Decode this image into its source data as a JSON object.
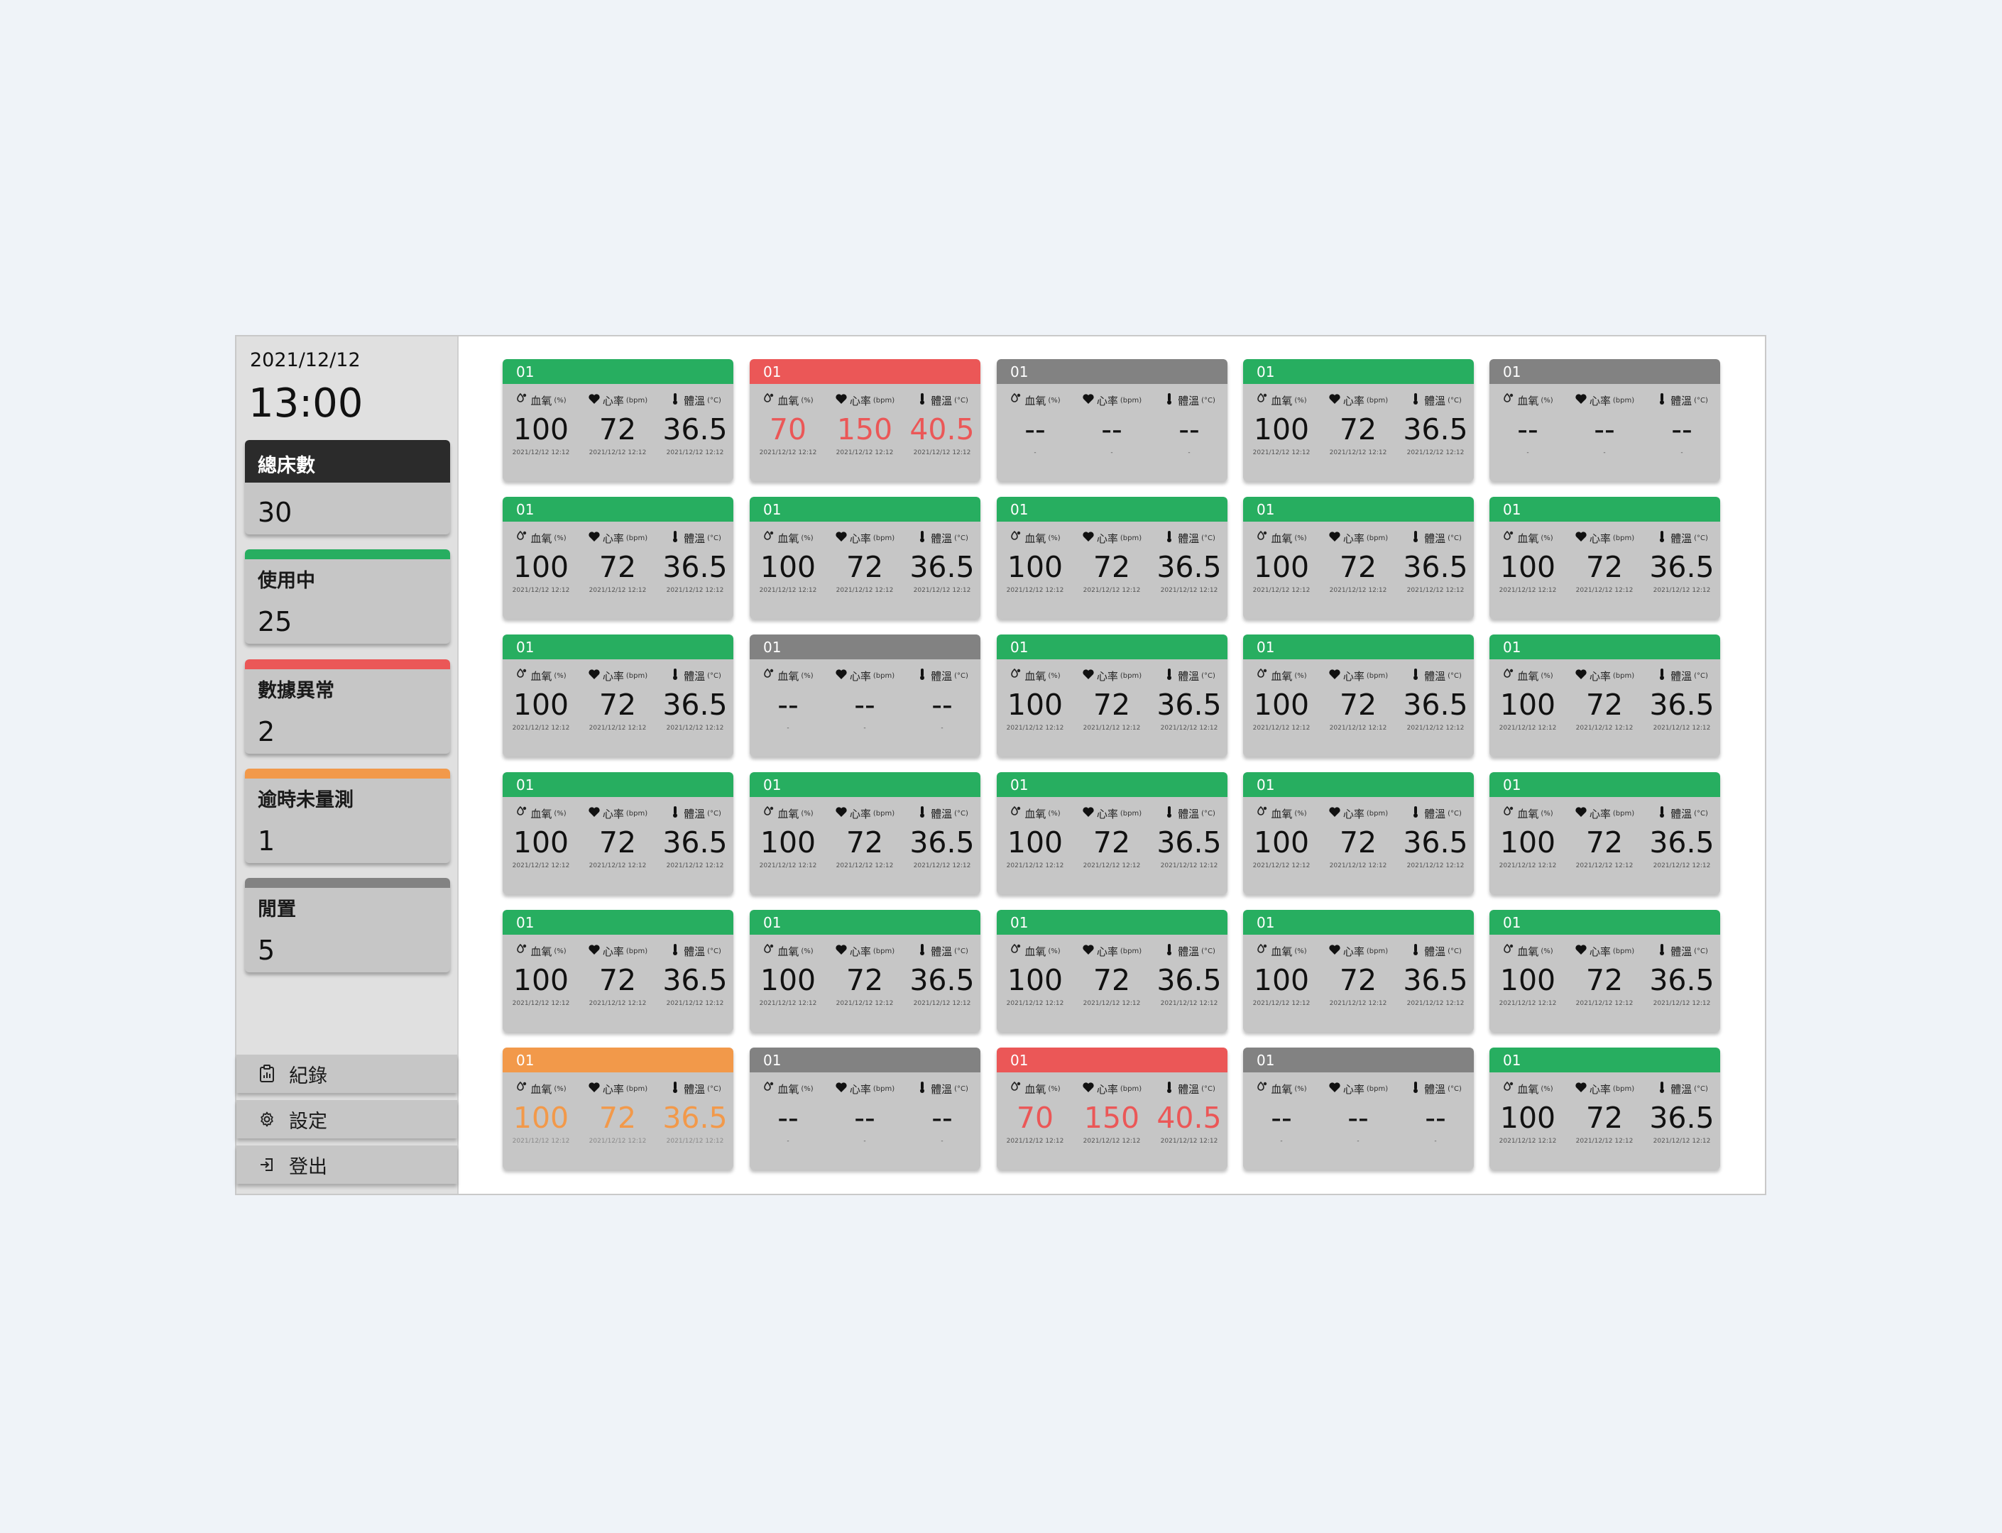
{
  "colors": {
    "normal": "#27ae60",
    "alert": "#eb5757",
    "overdue": "#f2994a",
    "idle": "#828282",
    "total": "#2b2b2b"
  },
  "sidebar": {
    "date": "2021/12/12",
    "time": "13:00",
    "stats": [
      {
        "label": "總床數",
        "value": "30",
        "kind": "total"
      },
      {
        "label": "使用中",
        "value": "25",
        "kind": "normal"
      },
      {
        "label": "數據異常",
        "value": "2",
        "kind": "alert"
      },
      {
        "label": "逾時未量測",
        "value": "1",
        "kind": "overdue"
      },
      {
        "label": "閒置",
        "value": "5",
        "kind": "idle"
      }
    ],
    "nav": [
      {
        "label": "紀錄",
        "icon": "report-icon"
      },
      {
        "label": "設定",
        "icon": "gear-icon"
      },
      {
        "label": "登出",
        "icon": "logout-icon"
      }
    ]
  },
  "metric_labels": {
    "spo2": "血氧",
    "spo2_unit": "(%)",
    "hr": "心率",
    "hr_unit": "(bpm)",
    "temp": "體溫",
    "temp_unit": "(°C)"
  },
  "beds": [
    {
      "id": "01",
      "status": "normal",
      "spo2": "100",
      "hr": "72",
      "temp": "36.5",
      "ts": "2021/12/12 12:12"
    },
    {
      "id": "01",
      "status": "alert",
      "spo2": "70",
      "hr": "150",
      "temp": "40.5",
      "ts": "2021/12/12 12:12"
    },
    {
      "id": "01",
      "status": "idle",
      "spo2": "--",
      "hr": "--",
      "temp": "--",
      "ts": "-"
    },
    {
      "id": "01",
      "status": "normal",
      "spo2": "100",
      "hr": "72",
      "temp": "36.5",
      "ts": "2021/12/12 12:12"
    },
    {
      "id": "01",
      "status": "idle",
      "spo2": "--",
      "hr": "--",
      "temp": "--",
      "ts": "-"
    },
    {
      "id": "01",
      "status": "normal",
      "spo2": "100",
      "hr": "72",
      "temp": "36.5",
      "ts": "2021/12/12 12:12"
    },
    {
      "id": "01",
      "status": "normal",
      "spo2": "100",
      "hr": "72",
      "temp": "36.5",
      "ts": "2021/12/12 12:12"
    },
    {
      "id": "01",
      "status": "normal",
      "spo2": "100",
      "hr": "72",
      "temp": "36.5",
      "ts": "2021/12/12 12:12"
    },
    {
      "id": "01",
      "status": "normal",
      "spo2": "100",
      "hr": "72",
      "temp": "36.5",
      "ts": "2021/12/12 12:12"
    },
    {
      "id": "01",
      "status": "normal",
      "spo2": "100",
      "hr": "72",
      "temp": "36.5",
      "ts": "2021/12/12 12:12"
    },
    {
      "id": "01",
      "status": "normal",
      "spo2": "100",
      "hr": "72",
      "temp": "36.5",
      "ts": "2021/12/12 12:12"
    },
    {
      "id": "01",
      "status": "idle",
      "spo2": "--",
      "hr": "--",
      "temp": "--",
      "ts": "-"
    },
    {
      "id": "01",
      "status": "normal",
      "spo2": "100",
      "hr": "72",
      "temp": "36.5",
      "ts": "2021/12/12 12:12"
    },
    {
      "id": "01",
      "status": "normal",
      "spo2": "100",
      "hr": "72",
      "temp": "36.5",
      "ts": "2021/12/12 12:12"
    },
    {
      "id": "01",
      "status": "normal",
      "spo2": "100",
      "hr": "72",
      "temp": "36.5",
      "ts": "2021/12/12 12:12"
    },
    {
      "id": "01",
      "status": "normal",
      "spo2": "100",
      "hr": "72",
      "temp": "36.5",
      "ts": "2021/12/12 12:12"
    },
    {
      "id": "01",
      "status": "normal",
      "spo2": "100",
      "hr": "72",
      "temp": "36.5",
      "ts": "2021/12/12 12:12"
    },
    {
      "id": "01",
      "status": "normal",
      "spo2": "100",
      "hr": "72",
      "temp": "36.5",
      "ts": "2021/12/12 12:12"
    },
    {
      "id": "01",
      "status": "normal",
      "spo2": "100",
      "hr": "72",
      "temp": "36.5",
      "ts": "2021/12/12 12:12"
    },
    {
      "id": "01",
      "status": "normal",
      "spo2": "100",
      "hr": "72",
      "temp": "36.5",
      "ts": "2021/12/12 12:12"
    },
    {
      "id": "01",
      "status": "normal",
      "spo2": "100",
      "hr": "72",
      "temp": "36.5",
      "ts": "2021/12/12 12:12"
    },
    {
      "id": "01",
      "status": "normal",
      "spo2": "100",
      "hr": "72",
      "temp": "36.5",
      "ts": "2021/12/12 12:12"
    },
    {
      "id": "01",
      "status": "normal",
      "spo2": "100",
      "hr": "72",
      "temp": "36.5",
      "ts": "2021/12/12 12:12"
    },
    {
      "id": "01",
      "status": "normal",
      "spo2": "100",
      "hr": "72",
      "temp": "36.5",
      "ts": "2021/12/12 12:12"
    },
    {
      "id": "01",
      "status": "normal",
      "spo2": "100",
      "hr": "72",
      "temp": "36.5",
      "ts": "2021/12/12 12:12"
    },
    {
      "id": "01",
      "status": "overdue",
      "spo2": "100",
      "hr": "72",
      "temp": "36.5",
      "ts": "2021/12/12 12:12"
    },
    {
      "id": "01",
      "status": "idle",
      "spo2": "--",
      "hr": "--",
      "temp": "--",
      "ts": "-"
    },
    {
      "id": "01",
      "status": "alert",
      "spo2": "70",
      "hr": "150",
      "temp": "40.5",
      "ts": "2021/12/12 12:12"
    },
    {
      "id": "01",
      "status": "idle",
      "spo2": "--",
      "hr": "--",
      "temp": "--",
      "ts": "-"
    },
    {
      "id": "01",
      "status": "normal",
      "spo2": "100",
      "hr": "72",
      "temp": "36.5",
      "ts": "2021/12/12 12:12"
    }
  ]
}
